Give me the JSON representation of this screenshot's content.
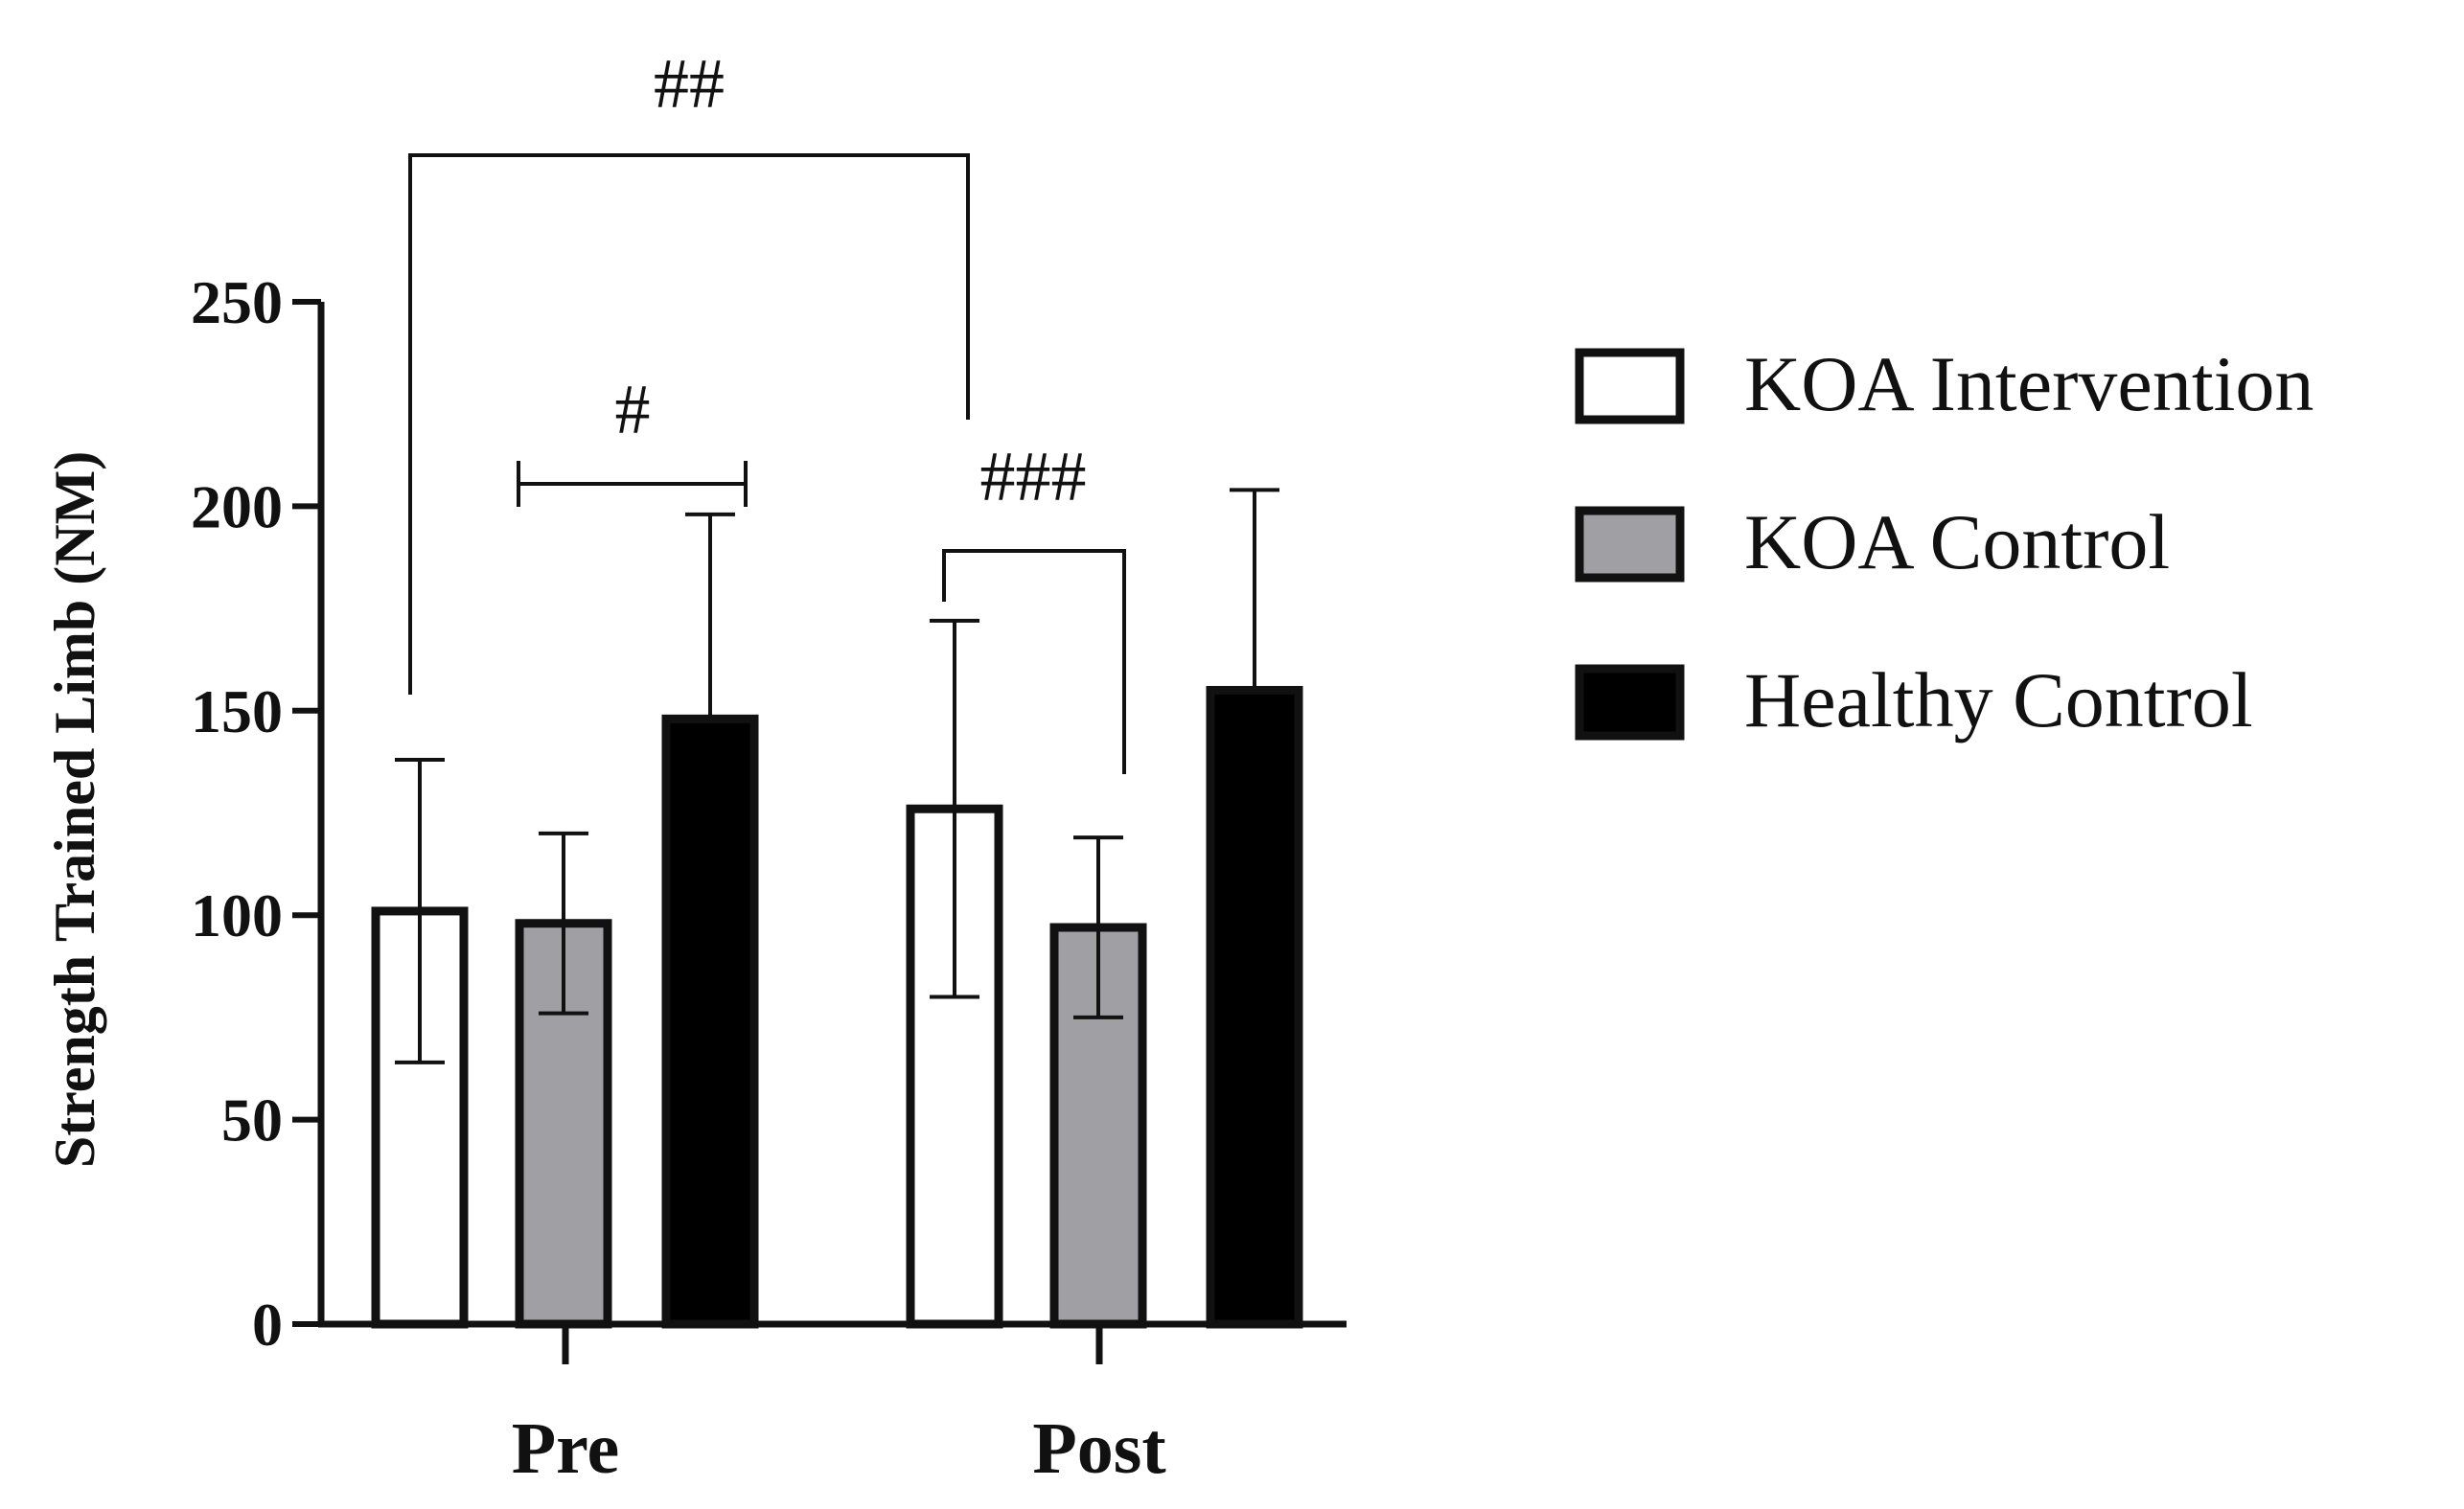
{
  "chart_data": {
    "type": "bar",
    "categories": [
      "Pre",
      "Post"
    ],
    "series": [
      {
        "name": "KOA Intervention",
        "color": "#ffffff",
        "values": [
          101,
          126
        ],
        "errors": [
          37,
          46
        ]
      },
      {
        "name": "KOA Control",
        "color": "#a0a0a4",
        "values": [
          98,
          97
        ],
        "errors": [
          22,
          22
        ]
      },
      {
        "name": "Healthy Control",
        "color": "#000000",
        "values": [
          148,
          155
        ],
        "errors": [
          50,
          49
        ]
      }
    ],
    "ylabel": "Strength Trained Limb (NM)",
    "xlabel": "",
    "ylim": [
      0,
      250
    ],
    "yticks": [
      0,
      50,
      100,
      150,
      200,
      250
    ],
    "legend_position": "right",
    "annotations": [
      {
        "label": "##",
        "style": "bracket",
        "from": "KOA Intervention, Pre",
        "to": "KOA Intervention, Post"
      },
      {
        "label": "#",
        "style": "capped-line",
        "from": "KOA Control, Pre",
        "to": "Healthy Control, Pre"
      },
      {
        "label": "###",
        "style": "bracket",
        "from": "KOA Intervention, Post",
        "to": "KOA Control, Post"
      }
    ]
  }
}
